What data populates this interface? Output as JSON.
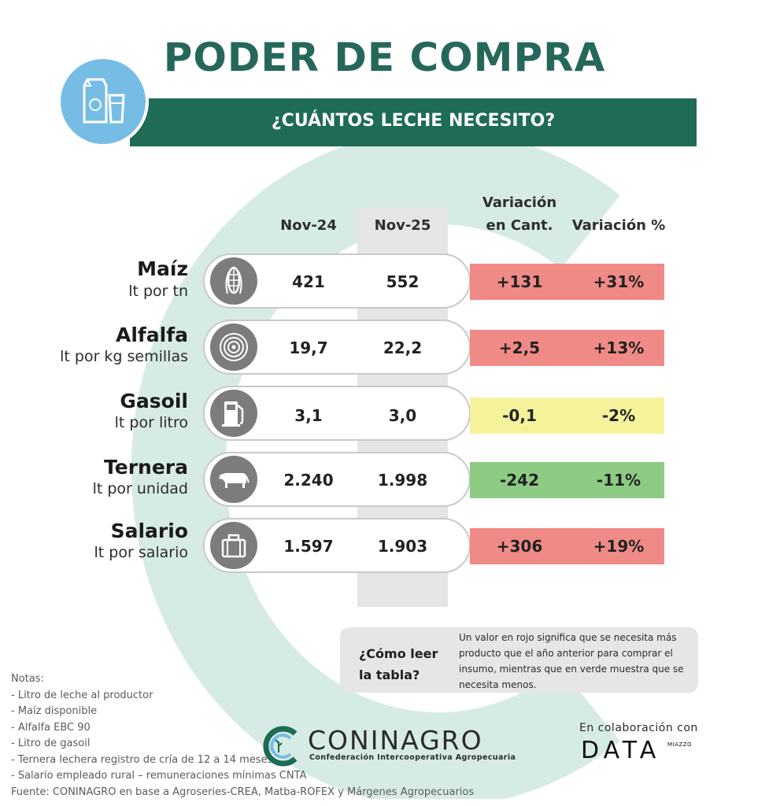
{
  "title": "PODER DE COMPRA",
  "subtitle": "¿CUÁNTOS LECHE NECESITO?",
  "columns": {
    "nov24": "Nov-24",
    "nov25": "Nov-25",
    "var_cant_line1": "Variación",
    "var_cant_line2": "en Cant.",
    "var_pct": "Variación %"
  },
  "rows": [
    {
      "name": "Maíz",
      "unit": "lt por tn",
      "icon": "corn-icon",
      "nov24": "421",
      "nov25": "552",
      "var_cant": "+131",
      "var_pct": "+31%",
      "status": "red"
    },
    {
      "name": "Alfalfa",
      "unit": "lt por kg semillas",
      "icon": "hay-bale-icon",
      "nov24": "19,7",
      "nov25": "22,2",
      "var_cant": "+2,5",
      "var_pct": "+13%",
      "status": "red"
    },
    {
      "name": "Gasoil",
      "unit": "lt por litro",
      "icon": "fuel-pump-icon",
      "nov24": "3,1",
      "nov25": "3,0",
      "var_cant": "-0,1",
      "var_pct": "-2%",
      "status": "yellow"
    },
    {
      "name": "Ternera",
      "unit": "lt por unidad",
      "icon": "cow-icon",
      "nov24": "2.240",
      "nov25": "1.998",
      "var_cant": "-242",
      "var_pct": "-11%",
      "status": "green"
    },
    {
      "name": "Salario",
      "unit": "lt por salario",
      "icon": "briefcase-icon",
      "nov24": "1.597",
      "nov25": "1.903",
      "var_cant": "+306",
      "var_pct": "+19%",
      "status": "red"
    }
  ],
  "colors": {
    "red": "#ef8a86",
    "yellow": "#f6f29c",
    "green": "#8dcb83",
    "brand_green": "#1e6b56",
    "milk_blue": "#76bde6"
  },
  "how_to_read": {
    "question_line1": "¿Cómo leer",
    "question_line2": "la tabla?",
    "text": "Un valor en rojo significa que se necesita más producto que el año anterior para comprar el insumo, mientras que en verde muestra que se necesita menos."
  },
  "notes": {
    "heading": "Notas:",
    "items": [
      "- Litro de leche al productor",
      "- Maíz disponible",
      "- Alfalfa EBC 90",
      "- Litro de gasoil",
      "- Ternera lechera registro de cría de 12 a 14 meses",
      "- Salario empleado rural – remuneraciones mínimas CNTA"
    ],
    "source": "Fuente: CONINAGRO en base a Agroseries-CREA, Matba-ROFEX y Márgenes Agropecuarios"
  },
  "footer": {
    "coninagro_name": "CONINAGRO",
    "coninagro_sub": "Confederación Intercooperativa Agropecuaria",
    "collab_label": "En colaboración con",
    "data_logo": "DATA",
    "miazzo": "MIAZZO"
  }
}
